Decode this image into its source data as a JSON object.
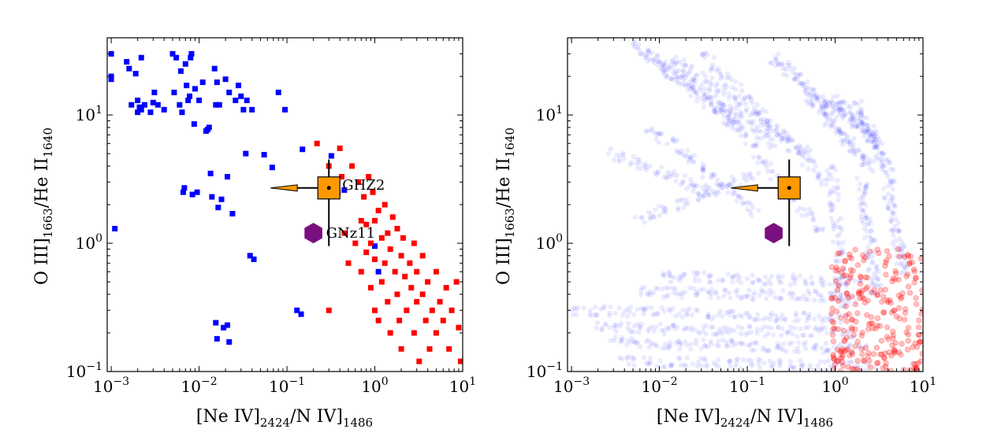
{
  "chart_data": [
    {
      "type": "scatter",
      "panel": "left",
      "xscale": "log",
      "yscale": "log",
      "xlim": [
        0.0009,
        10
      ],
      "ylim": [
        0.1,
        40
      ],
      "xlabel": "[Ne IV]2424/N IV]1486",
      "ylabel": "O III]1663/He II1640",
      "xticks": [
        {
          "value": 0.001,
          "base": "10",
          "exp": "−3"
        },
        {
          "value": 0.01,
          "base": "10",
          "exp": "−2"
        },
        {
          "value": 0.1,
          "base": "10",
          "exp": "−1"
        },
        {
          "value": 1,
          "base": "10",
          "exp": "0"
        },
        {
          "value": 10,
          "base": "10",
          "exp": "1"
        }
      ],
      "yticks": [
        {
          "value": 0.1,
          "base": "10",
          "exp": "−1"
        },
        {
          "value": 1,
          "base": "10",
          "exp": "0"
        },
        {
          "value": 10,
          "base": "10",
          "exp": "1"
        }
      ],
      "series": [
        {
          "name": "blue",
          "color": "#0000ff",
          "marker": "square",
          "points": [
            [
              0.001,
              30
            ],
            [
              0.001,
              20
            ],
            [
              0.001,
              19
            ],
            [
              0.0011,
              1.3
            ],
            [
              0.0015,
              26
            ],
            [
              0.0016,
              23
            ],
            [
              0.0017,
              12
            ],
            [
              0.0019,
              21
            ],
            [
              0.002,
              13
            ],
            [
              0.002,
              10.5
            ],
            [
              0.0021,
              11.5
            ],
            [
              0.0022,
              28
            ],
            [
              0.0022,
              11
            ],
            [
              0.0024,
              12
            ],
            [
              0.0028,
              10.5
            ],
            [
              0.003,
              12.5
            ],
            [
              0.0031,
              15
            ],
            [
              0.0034,
              12
            ],
            [
              0.004,
              11
            ],
            [
              0.005,
              30
            ],
            [
              0.0052,
              15
            ],
            [
              0.0055,
              28
            ],
            [
              0.006,
              12
            ],
            [
              0.0062,
              22
            ],
            [
              0.0064,
              10.5
            ],
            [
              0.0066,
              2.5
            ],
            [
              0.0068,
              2.7
            ],
            [
              0.007,
              25
            ],
            [
              0.0072,
              17
            ],
            [
              0.0075,
              13
            ],
            [
              0.0078,
              14
            ],
            [
              0.008,
              28
            ],
            [
              0.0082,
              30
            ],
            [
              0.0084,
              2.4
            ],
            [
              0.0088,
              8.5
            ],
            [
              0.009,
              16
            ],
            [
              0.0095,
              2.5
            ],
            [
              0.01,
              13
            ],
            [
              0.011,
              18
            ],
            [
              0.012,
              7.5
            ],
            [
              0.0125,
              7.7
            ],
            [
              0.013,
              8
            ],
            [
              0.0135,
              3.5
            ],
            [
              0.014,
              2.3
            ],
            [
              0.015,
              23
            ],
            [
              0.0155,
              12
            ],
            [
              0.016,
              18
            ],
            [
              0.0165,
              1.9
            ],
            [
              0.017,
              12
            ],
            [
              0.018,
              2.2
            ],
            [
              0.019,
              0.22
            ],
            [
              0.02,
              19
            ],
            [
              0.021,
              3.3
            ],
            [
              0.022,
              15
            ],
            [
              0.024,
              1.7
            ],
            [
              0.026,
              13
            ],
            [
              0.028,
              17
            ],
            [
              0.03,
              14
            ],
            [
              0.032,
              11
            ],
            [
              0.034,
              5
            ],
            [
              0.035,
              13
            ],
            [
              0.038,
              0.8
            ],
            [
              0.04,
              11
            ],
            [
              0.042,
              0.75
            ],
            [
              0.055,
              4.9
            ],
            [
              0.068,
              3.9
            ],
            [
              0.08,
              15
            ],
            [
              0.095,
              11
            ],
            [
              0.13,
              0.3
            ],
            [
              0.145,
              0.28
            ],
            [
              0.15,
              5.4
            ],
            [
              0.32,
              4.8
            ],
            [
              0.45,
              2.6
            ],
            [
              1.0,
              0.95
            ],
            [
              1.1,
              0.6
            ],
            [
              0.0155,
              0.24
            ],
            [
              0.016,
              0.18
            ],
            [
              0.021,
              0.23
            ],
            [
              0.022,
              0.17
            ]
          ]
        },
        {
          "name": "red",
          "color": "#ff0000",
          "marker": "square",
          "points": [
            [
              0.22,
              6
            ],
            [
              0.3,
              4
            ],
            [
              0.3,
              0.3
            ],
            [
              0.38,
              2.5
            ],
            [
              0.4,
              5.5
            ],
            [
              0.42,
              3.3
            ],
            [
              0.45,
              1.2
            ],
            [
              0.5,
              0.7
            ],
            [
              0.55,
              4
            ],
            [
              0.6,
              1
            ],
            [
              0.65,
              3
            ],
            [
              0.7,
              1.5
            ],
            [
              0.7,
              0.6
            ],
            [
              0.75,
              2.3
            ],
            [
              0.8,
              1.4
            ],
            [
              0.8,
              0.85
            ],
            [
              0.85,
              3.3
            ],
            [
              0.9,
              1
            ],
            [
              0.9,
              0.45
            ],
            [
              0.95,
              2.5
            ],
            [
              1.0,
              1.5
            ],
            [
              1.0,
              0.75
            ],
            [
              1.0,
              0.3
            ],
            [
              1.1,
              1.8
            ],
            [
              1.1,
              0.25
            ],
            [
              1.2,
              1.1
            ],
            [
              1.2,
              0.5
            ],
            [
              1.3,
              2
            ],
            [
              1.3,
              0.7
            ],
            [
              1.4,
              1.2
            ],
            [
              1.4,
              0.35
            ],
            [
              1.5,
              0.9
            ],
            [
              1.5,
              0.2
            ],
            [
              1.6,
              1.6
            ],
            [
              1.7,
              0.6
            ],
            [
              1.8,
              1.3
            ],
            [
              1.8,
              0.4
            ],
            [
              1.9,
              0.25
            ],
            [
              2.0,
              0.8
            ],
            [
              2.0,
              0.15
            ],
            [
              2.1,
              1.1
            ],
            [
              2.2,
              0.55
            ],
            [
              2.3,
              0.3
            ],
            [
              2.5,
              0.7
            ],
            [
              2.6,
              0.45
            ],
            [
              2.8,
              1
            ],
            [
              2.8,
              0.2
            ],
            [
              3.0,
              0.35
            ],
            [
              3.0,
              0.6
            ],
            [
              3.2,
              0.12
            ],
            [
              3.5,
              0.8
            ],
            [
              3.5,
              0.4
            ],
            [
              3.8,
              0.25
            ],
            [
              4.0,
              0.5
            ],
            [
              4.2,
              0.15
            ],
            [
              4.5,
              0.3
            ],
            [
              5.0,
              0.6
            ],
            [
              5.0,
              0.2
            ],
            [
              5.5,
              0.35
            ],
            [
              6.0,
              0.25
            ],
            [
              6.5,
              0.45
            ],
            [
              7.0,
              0.15
            ],
            [
              7.5,
              0.3
            ],
            [
              8.5,
              0.5
            ],
            [
              9.0,
              0.22
            ],
            [
              9.5,
              0.12
            ]
          ]
        }
      ],
      "errorbar_point": {
        "name": "GHZ2",
        "x": 0.3,
        "y": 2.7,
        "x_upper_limit_arrow_to": 0.065,
        "y_err": [
          0.95,
          4.5
        ],
        "color": "#ff9900",
        "marker": "square"
      },
      "ref_point": {
        "name": "GNz11",
        "x": 0.2,
        "y": 1.2,
        "color": "#7a0f80",
        "marker": "hexagon"
      },
      "annotations": [
        "GHZ2",
        "GNz11"
      ]
    },
    {
      "type": "scatter",
      "panel": "right",
      "xscale": "log",
      "yscale": "log",
      "xlim": [
        0.0009,
        10
      ],
      "ylim": [
        0.1,
        40
      ],
      "xlabel": "[Ne IV]2424/N IV]1486",
      "ylabel": "O III]1663/He II1640",
      "xticks": [
        {
          "value": 0.001,
          "base": "10",
          "exp": "−3"
        },
        {
          "value": 0.01,
          "base": "10",
          "exp": "−2"
        },
        {
          "value": 0.1,
          "base": "10",
          "exp": "−1"
        },
        {
          "value": 1,
          "base": "10",
          "exp": "0"
        },
        {
          "value": 10,
          "base": "10",
          "exp": "1"
        }
      ],
      "yticks": [
        {
          "value": 0.1,
          "base": "10",
          "exp": "−1"
        },
        {
          "value": 1,
          "base": "10",
          "exp": "0"
        },
        {
          "value": 10,
          "base": "10",
          "exp": "1"
        }
      ],
      "series": [
        {
          "name": "blue-dense",
          "color": "#0000ff",
          "marker": "circle",
          "alpha": 0.08,
          "tracks": [
            {
              "from": [
                0.005,
                35
              ],
              "to": [
                0.08,
                8
              ],
              "count": 30
            },
            {
              "from": [
                0.008,
                30
              ],
              "to": [
                0.2,
                6
              ],
              "count": 30
            },
            {
              "from": [
                0.015,
                28
              ],
              "to": [
                0.5,
                5
              ],
              "count": 30
            },
            {
              "from": [
                0.03,
                30
              ],
              "to": [
                0.8,
                3
              ],
              "count": 30
            },
            {
              "from": [
                0.05,
                12
              ],
              "to": [
                0.7,
                1.2
              ],
              "count": 25
            },
            {
              "from": [
                0.008,
                8
              ],
              "to": [
                0.12,
                1.8
              ],
              "count": 25
            },
            {
              "from": [
                0.006,
                1.5
              ],
              "to": [
                0.12,
                3.5
              ],
              "count": 20
            },
            {
              "from": [
                0.003,
                5
              ],
              "to": [
                0.04,
                2.5
              ],
              "count": 20
            },
            {
              "from": [
                0.2,
                28
              ],
              "to": [
                1.1,
                10
              ],
              "count": 25
            },
            {
              "from": [
                0.5,
                14
              ],
              "to": [
                2.5,
                4
              ],
              "count": 30
            },
            {
              "from": [
                1.0,
                13
              ],
              "to": [
                3.0,
                6
              ],
              "count": 25
            },
            {
              "from": [
                1.8,
                12
              ],
              "to": [
                4.5,
                3
              ],
              "count": 25
            },
            {
              "from": [
                0.9,
                4
              ],
              "to": [
                1.3,
                0.3
              ],
              "count": 25
            },
            {
              "from": [
                2.0,
                3
              ],
              "to": [
                3.0,
                0.4
              ],
              "count": 25
            },
            {
              "from": [
                4.0,
                2.5
              ],
              "to": [
                6.0,
                0.6
              ],
              "count": 20
            },
            {
              "from": [
                0.001,
                0.3
              ],
              "to": [
                1.2,
                0.26
              ],
              "count": 40
            },
            {
              "from": [
                0.002,
                0.22
              ],
              "to": [
                1.5,
                0.2
              ],
              "count": 40
            },
            {
              "from": [
                0.003,
                0.17
              ],
              "to": [
                2.0,
                0.15
              ],
              "count": 40
            },
            {
              "from": [
                0.004,
                0.12
              ],
              "to": [
                2.5,
                0.11
              ],
              "count": 35
            },
            {
              "from": [
                0.006,
                0.42
              ],
              "to": [
                1.5,
                0.38
              ],
              "count": 35
            },
            {
              "from": [
                0.01,
                0.55
              ],
              "to": [
                1.8,
                0.5
              ],
              "count": 30
            }
          ]
        },
        {
          "name": "red-dense",
          "color": "#ff0000",
          "marker": "circle",
          "alpha": 0.25,
          "cluster": {
            "x_range": [
              0.9,
              10
            ],
            "y_range": [
              0.1,
              0.9
            ],
            "count": 260
          }
        }
      ],
      "errorbar_point": {
        "name": "GHZ2",
        "x": 0.3,
        "y": 2.7,
        "x_upper_limit_arrow_to": 0.065,
        "y_err": [
          0.95,
          4.5
        ],
        "color": "#ff9900",
        "marker": "square"
      },
      "ref_point": {
        "name": "GNz11",
        "x": 0.2,
        "y": 1.2,
        "color": "#7a0f80",
        "marker": "hexagon"
      }
    }
  ]
}
